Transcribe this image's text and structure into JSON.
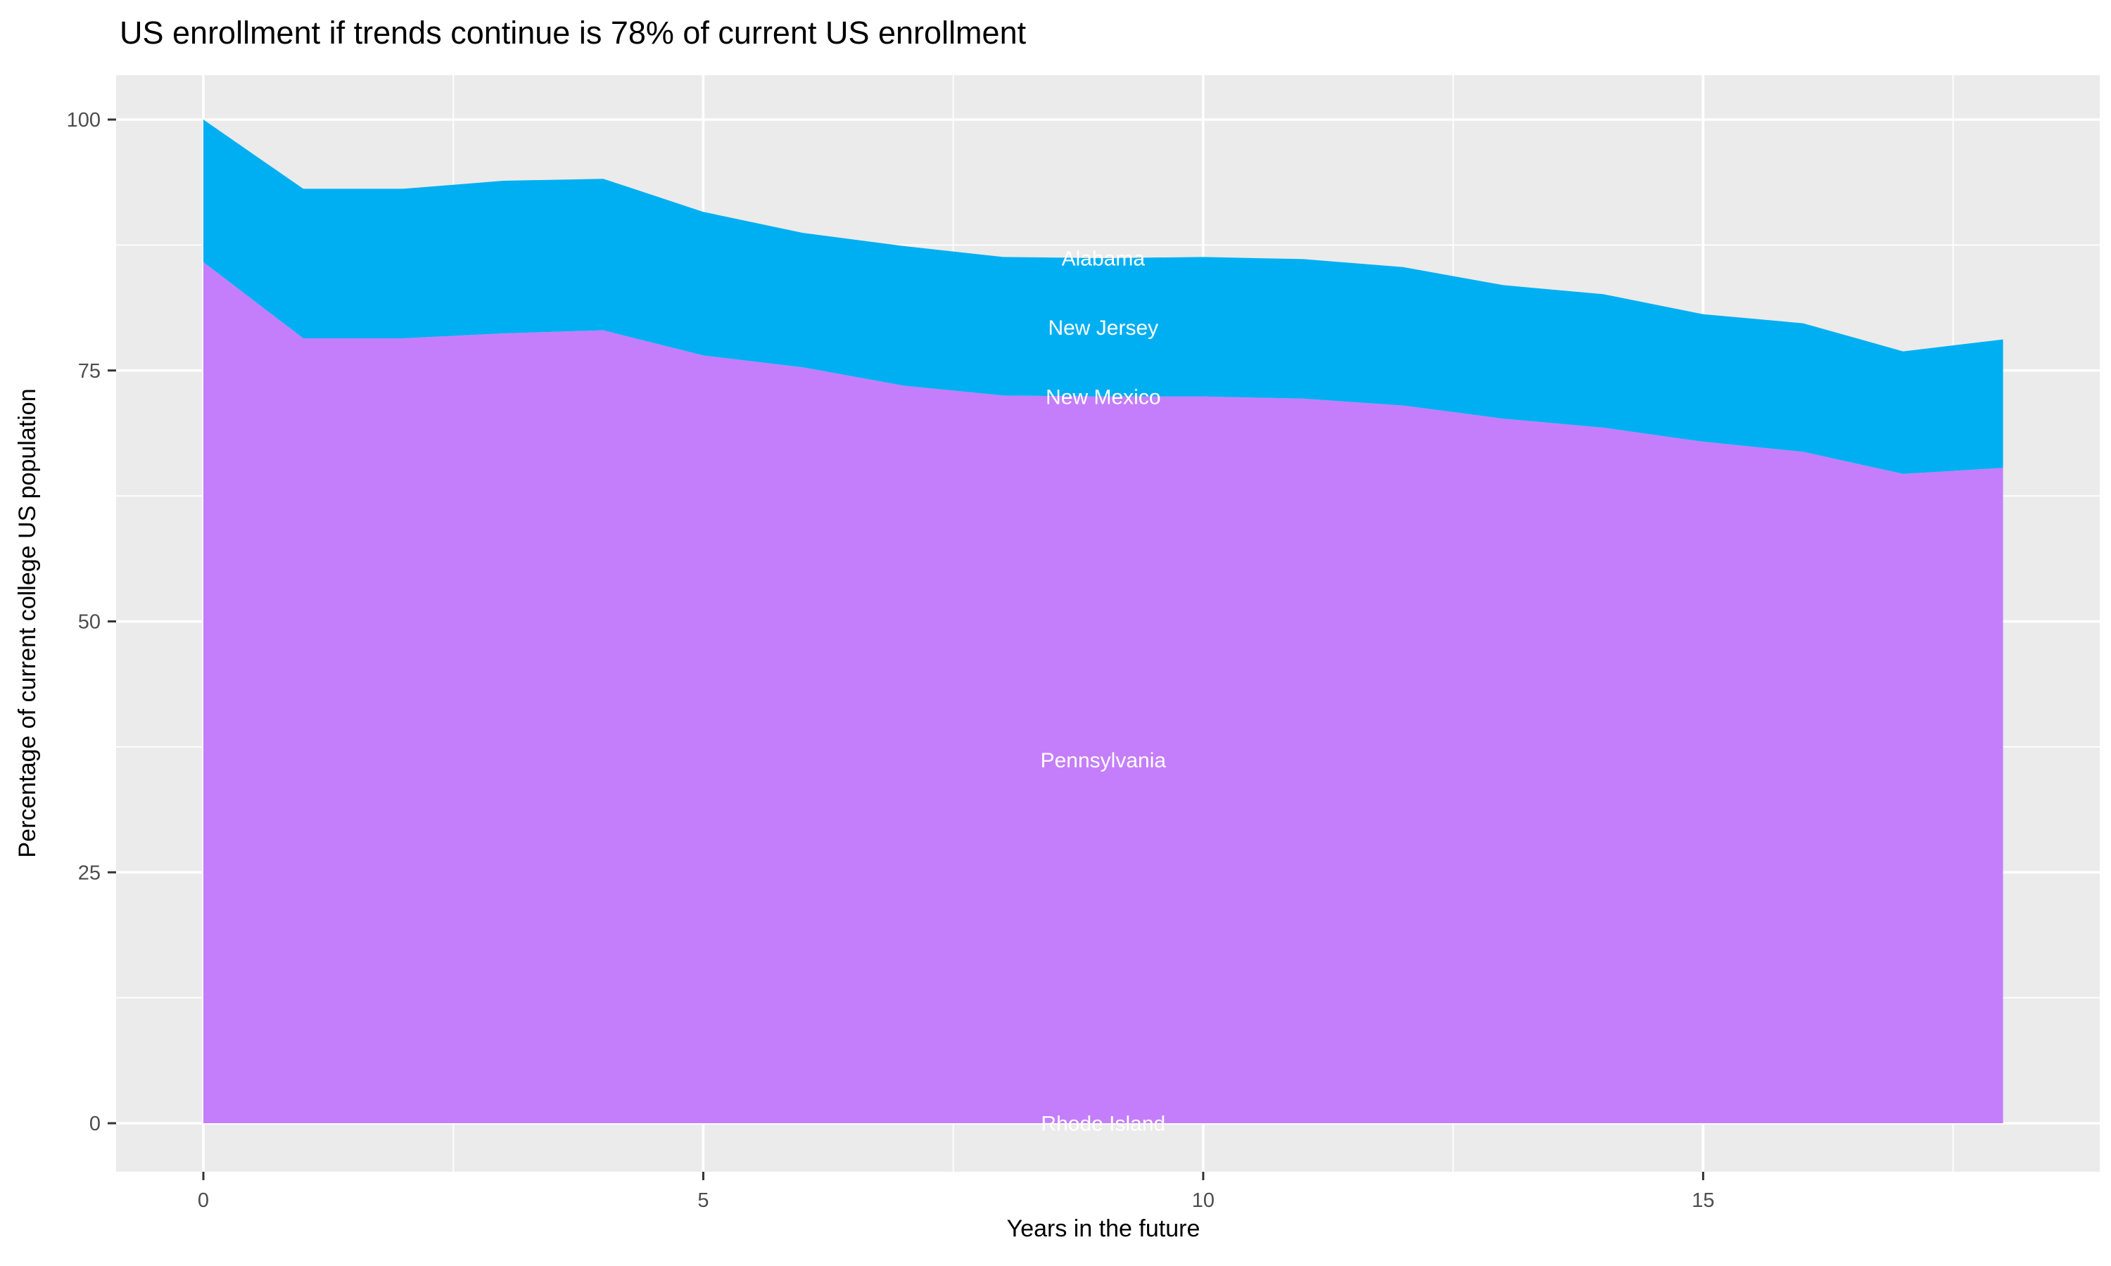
{
  "title": "US enrollment if trends continue is 78% of current US enrollment",
  "chart_data": {
    "type": "area",
    "stacked": true,
    "title": "US enrollment if trends continue is 78% of current US enrollment",
    "xlabel": "Years in the future",
    "ylabel": "Percentage of current college US population",
    "x": [
      0,
      1,
      2,
      3,
      4,
      5,
      6,
      7,
      8,
      9,
      10,
      11,
      12,
      13,
      14,
      15,
      16,
      17,
      18
    ],
    "series": [
      {
        "name": "lower-stack-band-pennsylvania",
        "color": "#C57EFB",
        "cumulative_top": [
          85.8,
          78.2,
          78.2,
          78.7,
          79.0,
          76.5,
          75.3,
          73.5,
          72.5,
          72.4,
          72.4,
          72.2,
          71.5,
          70.2,
          69.3,
          67.9,
          66.9,
          64.7,
          65.3
        ]
      },
      {
        "name": "upper-stack-band-new-jersey",
        "color": "#00AFF2",
        "cumulative_top": [
          100,
          93.1,
          93.1,
          93.9,
          94.1,
          90.8,
          88.7,
          87.4,
          86.3,
          86.2,
          86.3,
          86.1,
          85.3,
          83.5,
          82.6,
          80.6,
          79.7,
          76.9,
          78.1
        ]
      }
    ],
    "area_labels": [
      {
        "text": "Alabama",
        "x": 9,
        "y": 86.2
      },
      {
        "text": "New Jersey",
        "x": 9,
        "y": 79.3
      },
      {
        "text": "New Mexico",
        "x": 9,
        "y": 72.4
      },
      {
        "text": "Pennsylvania",
        "x": 9,
        "y": 36.2
      },
      {
        "text": "Rhode Island",
        "x": 9,
        "y": 0
      }
    ],
    "axes": {
      "x_ticks": [
        0,
        5,
        10,
        15
      ],
      "x_tick_labels": [
        "0",
        "5",
        "10",
        "15"
      ],
      "x_minor_gridlines": [
        2.5,
        7.5,
        12.5,
        17.5
      ],
      "y_ticks": [
        0,
        25,
        50,
        75,
        100
      ],
      "y_tick_labels": [
        "0",
        "25",
        "50",
        "75",
        "100"
      ],
      "y_minor_gridlines": [
        12.5,
        37.5,
        62.5,
        87.5
      ],
      "xlim": [
        -0.44,
        18.97
      ],
      "ylim": [
        -4.8,
        104.4
      ],
      "grid": true,
      "legend": "none"
    },
    "colors": {
      "panel_background": "#EBEBEB",
      "gridline": "#FFFFFF",
      "tick_mark": "#333333",
      "tick_label": "#4D4D4D",
      "area_label_text": "#FFFFFF",
      "outer_background": "#FFFFFF"
    }
  }
}
